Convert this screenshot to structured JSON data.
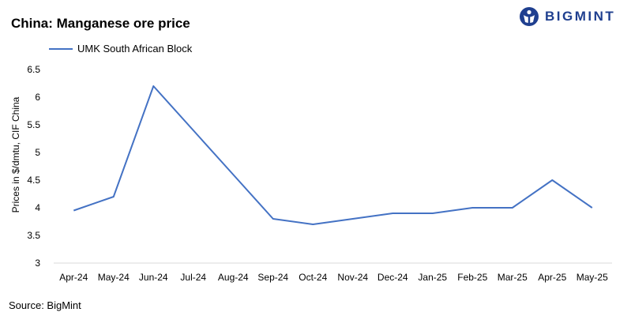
{
  "title": "China: Manganese ore price",
  "logo": {
    "text": "BIGMINT",
    "icon": "bigmint-logo-icon",
    "color": "#1f3f8f"
  },
  "source": "Source:  BigMint",
  "chart_data": {
    "type": "line",
    "title": "China: Manganese ore price",
    "xlabel": "",
    "ylabel": "Prices in $/dmtu, CIF China",
    "categories": [
      "Apr-24",
      "May-24",
      "Jun-24",
      "Jul-24",
      "Aug-24",
      "Sep-24",
      "Oct-24",
      "Nov-24",
      "Dec-24",
      "Jan-25",
      "Feb-25",
      "Mar-25",
      "Apr-25",
      "May-25"
    ],
    "series": [
      {
        "name": "UMK South African Block",
        "color": "#4472c4",
        "values": [
          3.95,
          4.2,
          6.2,
          5.4,
          4.6,
          3.8,
          3.7,
          3.8,
          3.9,
          3.9,
          4.0,
          4.0,
          4.5,
          4.0
        ]
      }
    ],
    "ylim": [
      3,
      6.5
    ],
    "yticks": [
      "3",
      "3.5",
      "4",
      "4.5",
      "5",
      "5.5",
      "6",
      "6.5"
    ],
    "grid": false,
    "legend": "top-left"
  }
}
